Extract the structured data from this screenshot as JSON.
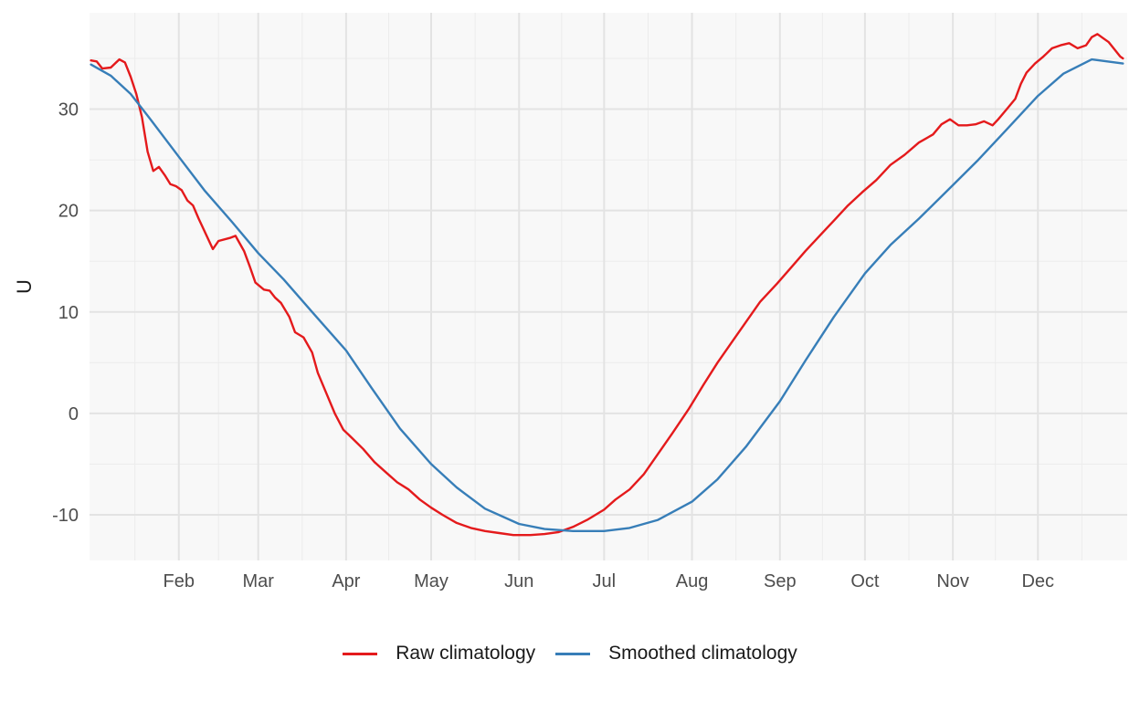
{
  "chart_data": {
    "type": "line",
    "ylabel": "U",
    "xlabel": "",
    "x_axis": "month",
    "x_ticks": [
      "Feb",
      "Mar",
      "Apr",
      "May",
      "Jun",
      "Jul",
      "Aug",
      "Sep",
      "Oct",
      "Nov",
      "Dec"
    ],
    "x_tick_dates": [
      "2001-02-01",
      "2001-03-01",
      "2001-04-01",
      "2001-05-01",
      "2001-06-01",
      "2001-07-01",
      "2001-08-01",
      "2001-09-01",
      "2001-10-01",
      "2001-11-01",
      "2001-12-01"
    ],
    "xlim": [
      "2001-01-01",
      "2001-12-31"
    ],
    "ylim": [
      -14.5,
      39.5
    ],
    "y_ticks": [
      -10,
      0,
      10,
      20,
      30
    ],
    "y_tick_labels": [
      "-10",
      "0",
      "10",
      "20",
      "30"
    ],
    "grid": true,
    "legend_position": "bottom",
    "series": [
      {
        "name": "Raw climatology",
        "color": "#E41A1C",
        "x": [
          "2001-01-01",
          "2001-01-03",
          "2001-01-05",
          "2001-01-08",
          "2001-01-11",
          "2001-01-13",
          "2001-01-15",
          "2001-01-17",
          "2001-01-19",
          "2001-01-21",
          "2001-01-23",
          "2001-01-25",
          "2001-01-27",
          "2001-01-29",
          "2001-01-31",
          "2001-02-02",
          "2001-02-04",
          "2001-02-06",
          "2001-02-08",
          "2001-02-10",
          "2001-02-13",
          "2001-02-15",
          "2001-02-19",
          "2001-02-21",
          "2001-02-24",
          "2001-02-26",
          "2001-02-28",
          "2001-03-03",
          "2001-03-05",
          "2001-03-07",
          "2001-03-09",
          "2001-03-12",
          "2001-03-14",
          "2001-03-17",
          "2001-03-20",
          "2001-03-22",
          "2001-03-25",
          "2001-03-28",
          "2001-03-31",
          "2001-04-03",
          "2001-04-07",
          "2001-04-11",
          "2001-04-15",
          "2001-04-19",
          "2001-04-23",
          "2001-04-27",
          "2001-05-01",
          "2001-05-05",
          "2001-05-10",
          "2001-05-15",
          "2001-05-20",
          "2001-05-25",
          "2001-05-30",
          "2001-06-05",
          "2001-06-10",
          "2001-06-15",
          "2001-06-20",
          "2001-06-25",
          "2001-07-01",
          "2001-07-05",
          "2001-07-10",
          "2001-07-15",
          "2001-07-20",
          "2001-07-25",
          "2001-07-31",
          "2001-08-05",
          "2001-08-10",
          "2001-08-15",
          "2001-08-20",
          "2001-08-25",
          "2001-08-31",
          "2001-09-05",
          "2001-09-10",
          "2001-09-15",
          "2001-09-20",
          "2001-09-25",
          "2001-09-30",
          "2001-10-05",
          "2001-10-10",
          "2001-10-15",
          "2001-10-20",
          "2001-10-25",
          "2001-10-28",
          "2001-10-31",
          "2001-11-03",
          "2001-11-06",
          "2001-11-09",
          "2001-11-12",
          "2001-11-15",
          "2001-11-17",
          "2001-11-20",
          "2001-11-23",
          "2001-11-25",
          "2001-11-27",
          "2001-11-30",
          "2001-12-03",
          "2001-12-06",
          "2001-12-09",
          "2001-12-12",
          "2001-12-15",
          "2001-12-18",
          "2001-12-20",
          "2001-12-22",
          "2001-12-24",
          "2001-12-26",
          "2001-12-28",
          "2001-12-30",
          "2001-12-31"
        ],
        "y": [
          34.8,
          34.7,
          34.0,
          34.1,
          34.9,
          34.6,
          33.2,
          31.5,
          29.2,
          25.8,
          23.9,
          24.3,
          23.5,
          22.6,
          22.4,
          22.0,
          21.0,
          20.5,
          19.2,
          18.0,
          16.2,
          17.0,
          17.3,
          17.5,
          16.0,
          14.5,
          12.9,
          12.2,
          12.1,
          11.4,
          10.9,
          9.5,
          8.0,
          7.5,
          6.0,
          4.0,
          2.0,
          0.0,
          -1.6,
          -2.4,
          -3.5,
          -4.8,
          -5.8,
          -6.8,
          -7.5,
          -8.5,
          -9.3,
          -10.0,
          -10.8,
          -11.3,
          -11.6,
          -11.8,
          -12.0,
          -12.0,
          -11.9,
          -11.7,
          -11.2,
          -10.5,
          -9.5,
          -8.5,
          -7.5,
          -6.0,
          -4.0,
          -2.0,
          0.5,
          2.8,
          5.0,
          7.0,
          9.0,
          11.0,
          12.8,
          14.4,
          16.0,
          17.5,
          19.0,
          20.5,
          21.8,
          23.0,
          24.5,
          25.5,
          26.7,
          27.5,
          28.5,
          29.0,
          28.4,
          28.4,
          28.5,
          28.8,
          28.4,
          29.0,
          30.0,
          31.0,
          32.5,
          33.6,
          34.5,
          35.2,
          36.0,
          36.3,
          36.5,
          36.0,
          36.3,
          37.1,
          37.4,
          37.0,
          36.6,
          35.9,
          35.2,
          35.0
        ]
      },
      {
        "name": "Smoothed climatology",
        "color": "#377EB8",
        "x": [
          "2001-01-01",
          "2001-01-08",
          "2001-01-15",
          "2001-01-22",
          "2001-02-01",
          "2001-02-10",
          "2001-02-20",
          "2001-03-01",
          "2001-03-10",
          "2001-03-20",
          "2001-04-01",
          "2001-04-10",
          "2001-04-20",
          "2001-05-01",
          "2001-05-10",
          "2001-05-20",
          "2001-06-01",
          "2001-06-10",
          "2001-06-20",
          "2001-07-01",
          "2001-07-10",
          "2001-07-20",
          "2001-08-01",
          "2001-08-10",
          "2001-08-20",
          "2001-09-01",
          "2001-09-10",
          "2001-09-20",
          "2001-10-01",
          "2001-10-10",
          "2001-10-20",
          "2001-11-01",
          "2001-11-10",
          "2001-11-20",
          "2001-12-01",
          "2001-12-10",
          "2001-12-20",
          "2001-12-31"
        ],
        "y": [
          34.4,
          33.3,
          31.5,
          29.0,
          25.3,
          22.0,
          18.8,
          15.8,
          13.2,
          10.0,
          6.2,
          2.5,
          -1.5,
          -5.0,
          -7.3,
          -9.4,
          -10.9,
          -11.4,
          -11.6,
          -11.6,
          -11.3,
          -10.5,
          -8.7,
          -6.5,
          -3.3,
          1.2,
          5.2,
          9.5,
          13.8,
          16.6,
          19.2,
          22.5,
          25.0,
          28.0,
          31.3,
          33.5,
          34.9,
          34.5
        ]
      }
    ]
  },
  "legend": {
    "items": [
      {
        "label": "Raw climatology",
        "color": "#E41A1C"
      },
      {
        "label": "Smoothed climatology",
        "color": "#377EB8"
      }
    ]
  }
}
